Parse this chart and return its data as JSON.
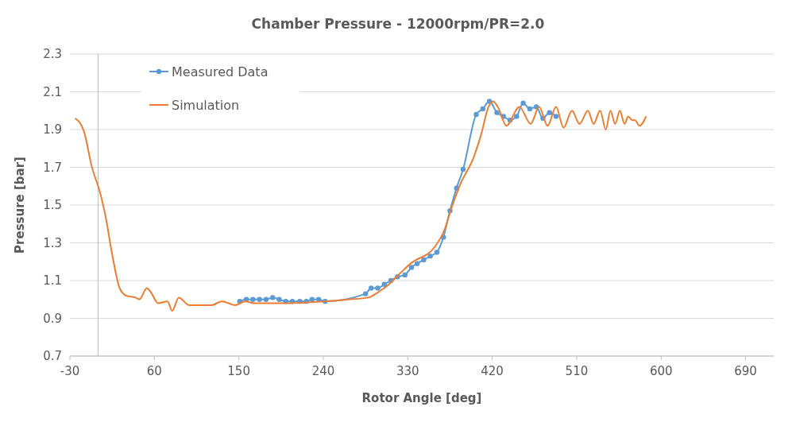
{
  "chart_data": {
    "type": "line",
    "title": "Chamber Pressure - 12000rpm/PR=2.0",
    "xlabel": "Rotor Angle [deg]",
    "ylabel": "Pressure [bar]",
    "xlim": [
      -30,
      720
    ],
    "xticks": [
      -30,
      60,
      150,
      240,
      330,
      420,
      510,
      600,
      690
    ],
    "ylim": [
      0.7,
      2.3
    ],
    "yticks": [
      {
        "value": 0.7,
        "label": "0.7"
      },
      {
        "value": 0.9,
        "label": "0.9"
      },
      {
        "value": 1.1,
        "label": "1.1"
      },
      {
        "value": 1.3,
        "label": "1.3"
      },
      {
        "value": 1.5,
        "label": "1.5"
      },
      {
        "value": 1.7,
        "label": "1.7"
      },
      {
        "value": 1.9,
        "label": "1.9"
      },
      {
        "value": 2.1,
        "label": "2.1"
      },
      {
        "value": 2.3,
        "label": "2.3"
      }
    ],
    "grid": "y",
    "legend": "top left",
    "line_style": "solid",
    "series": [
      {
        "name": "Measured Data",
        "color": "#5b9bd5",
        "marker": "circle",
        "x": [
          151,
          158,
          165,
          172,
          179,
          186,
          193,
          200,
          207,
          215,
          222,
          228,
          235,
          242,
          285,
          291,
          298,
          305,
          312,
          319,
          327,
          334,
          340,
          347,
          354,
          361,
          368,
          375,
          382,
          389,
          403,
          410,
          417,
          425,
          432,
          439,
          446,
          453,
          460,
          467,
          474,
          481,
          488
        ],
        "values": [
          0.99,
          1.0,
          1.0,
          1.0,
          1.0,
          1.01,
          1.0,
          0.99,
          0.99,
          0.99,
          0.99,
          1.0,
          1.0,
          0.99,
          1.03,
          1.06,
          1.06,
          1.08,
          1.1,
          1.12,
          1.13,
          1.17,
          1.19,
          1.21,
          1.23,
          1.25,
          1.33,
          1.47,
          1.59,
          1.69,
          1.98,
          2.01,
          2.05,
          1.99,
          1.97,
          1.95,
          1.97,
          2.04,
          2.01,
          2.02,
          1.96,
          1.99,
          1.97
        ]
      },
      {
        "name": "Simulation",
        "color": "#ed7d31",
        "marker": "none",
        "x": [
          -24.5,
          -15,
          -7,
          3,
          8,
          15,
          23,
          30,
          40,
          44,
          52,
          56,
          64,
          74,
          79,
          86,
          97,
          110,
          121,
          132,
          146,
          157,
          166,
          181,
          203,
          242,
          266,
          288,
          299,
          310,
          320,
          333,
          359,
          370,
          375,
          386,
          400,
          408,
          416,
          421,
          427,
          435,
          449,
          461,
          470,
          479,
          488,
          496,
          505,
          513,
          522,
          528,
          535,
          541,
          546,
          551,
          556,
          561,
          565,
          569,
          572,
          577,
          584
        ],
        "values": [
          1.96,
          1.89,
          1.71,
          1.55,
          1.44,
          1.24,
          1.06,
          1.02,
          1.01,
          1.0,
          1.06,
          1.04,
          0.98,
          0.99,
          0.94,
          1.01,
          0.97,
          0.97,
          0.97,
          0.99,
          0.97,
          0.99,
          0.98,
          0.98,
          0.98,
          0.99,
          1.0,
          1.01,
          1.04,
          1.08,
          1.13,
          1.19,
          1.28,
          1.38,
          1.46,
          1.61,
          1.75,
          1.87,
          2.02,
          2.05,
          2.01,
          1.92,
          2.02,
          1.93,
          2.02,
          1.92,
          2.02,
          1.91,
          2.0,
          1.93,
          2.0,
          1.93,
          2.0,
          1.9,
          2.0,
          1.93,
          2.0,
          1.93,
          1.97,
          1.95,
          1.95,
          1.92,
          1.97
        ]
      }
    ]
  }
}
